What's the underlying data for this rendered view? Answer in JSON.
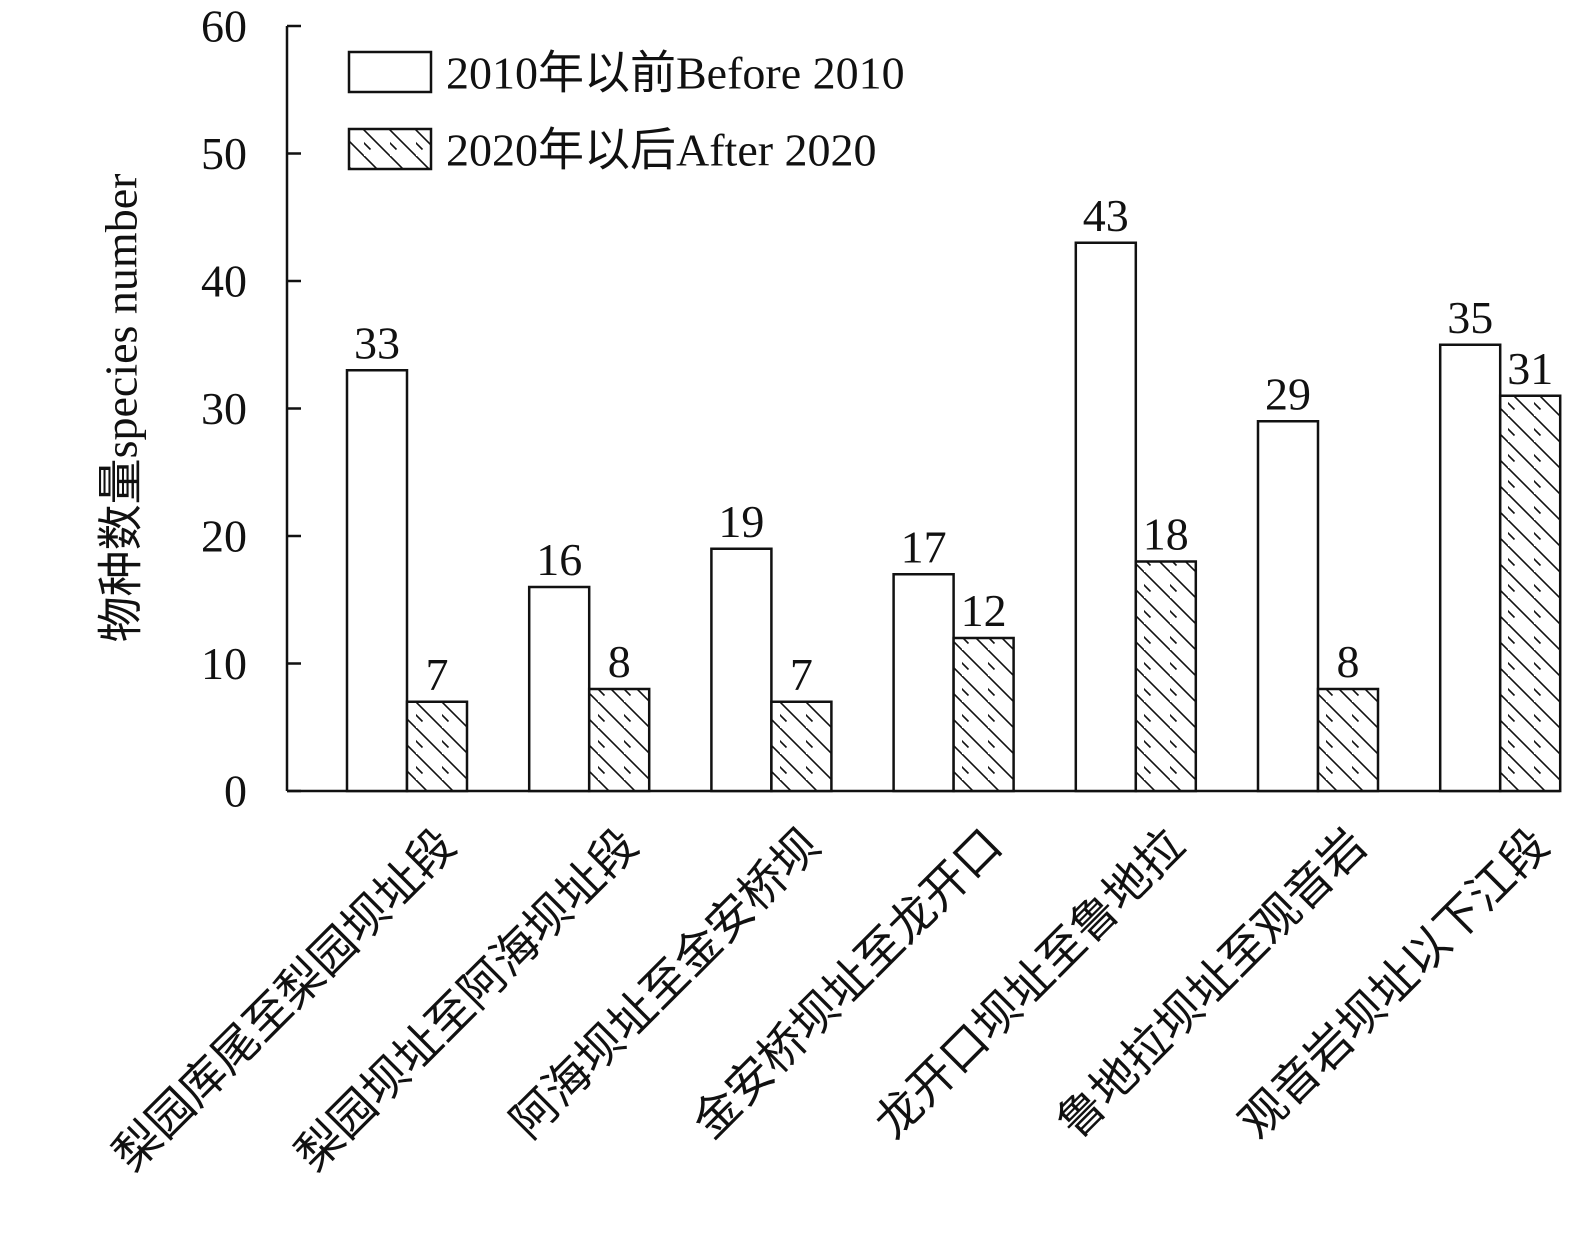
{
  "chart_data": {
    "type": "bar",
    "categories": [
      "梨园库尾至梨园坝址段",
      "梨园坝址至阿海坝址段",
      "阿海坝址至金安桥坝",
      "金安桥坝址至龙开口",
      "龙开口坝址至鲁地拉",
      "鲁地拉坝址至观音岩",
      "观音岩坝址以下江段"
    ],
    "series": [
      {
        "name": "2010年以前Before 2010",
        "values": [
          33,
          16,
          19,
          17,
          43,
          29,
          35
        ],
        "pattern": "none"
      },
      {
        "name": "2020年以后After 2020",
        "values": [
          7,
          8,
          7,
          12,
          18,
          8,
          31
        ],
        "pattern": "diagonal-hatch"
      }
    ],
    "title": "",
    "xlabel": "",
    "ylabel": "物种数量species number",
    "ylim": [
      0,
      60
    ],
    "yticks": [
      0,
      10,
      20,
      30,
      40,
      50,
      60
    ],
    "grid": false,
    "legend_position": "top-left",
    "colors": {
      "stroke": "#111111",
      "fill": "#ffffff"
    }
  }
}
